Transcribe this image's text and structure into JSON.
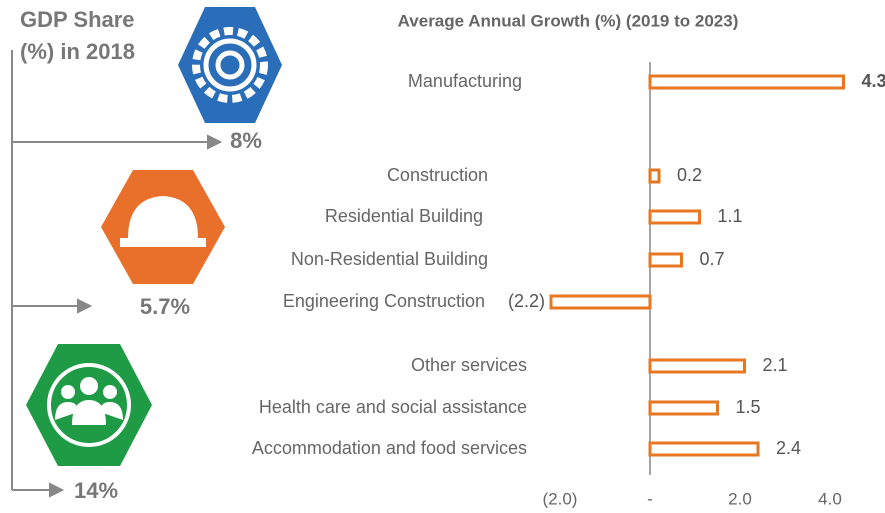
{
  "chart_data": {
    "type": "hbar",
    "title": "Average Annual Growth (%) (2019 to 2023)",
    "categories": [
      "Manufacturing",
      "Construction",
      "Residential Building",
      "Non-Residential Building",
      "Engineering Construction",
      "Other services",
      "Health care and social assistance",
      "Accommodation and food services"
    ],
    "values": [
      4.3,
      0.2,
      1.1,
      0.7,
      -2.2,
      2.1,
      1.5,
      2.4
    ],
    "value_labels": [
      "4.3",
      "0.2",
      "1.1",
      "0.7",
      "(2.2)",
      "2.1",
      "1.5",
      "2.4"
    ],
    "color": "#e87722",
    "xlim": [
      -2.4,
      4.4
    ],
    "xticks": [
      {
        "value": -2,
        "label": "(2.0)"
      },
      {
        "value": 0,
        "label": "-"
      },
      {
        "value": 2,
        "label": "2.0"
      },
      {
        "value": 4,
        "label": "4.0"
      }
    ]
  },
  "gdp_share": {
    "title": "GDP Share (%) in 2018",
    "labels": [
      "8%",
      "5.7%",
      "14%"
    ]
  }
}
